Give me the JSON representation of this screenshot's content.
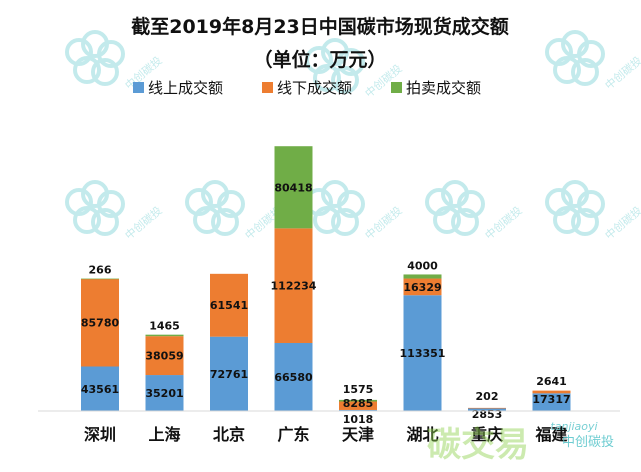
{
  "chart_data": {
    "type": "bar",
    "stacked": true,
    "title": "截至2019年8月23日中国碳市场现货成交额",
    "subtitle": "（单位：万元）",
    "categories": [
      "深圳",
      "上海",
      "北京",
      "广东",
      "天津",
      "湖北",
      "重庆",
      "福建"
    ],
    "series": [
      {
        "name": "线上成交额",
        "color": "#5b9bd5",
        "values": [
          43561,
          35201,
          72761,
          66580,
          1018,
          113351,
          2853,
          17317
        ]
      },
      {
        "name": "线下成交额",
        "color": "#ed7d31",
        "values": [
          85780,
          38059,
          61541,
          112234,
          8285,
          16329,
          202,
          2641
        ]
      },
      {
        "name": "拍卖成交额",
        "color": "#70ad47",
        "values": [
          266,
          1465,
          0,
          80418,
          1575,
          4000,
          0,
          0
        ]
      }
    ],
    "labels": [
      [
        "43561",
        "85780",
        "266"
      ],
      [
        "35201",
        "38059",
        "1465"
      ],
      [
        "72761",
        "61541",
        ""
      ],
      [
        "66580",
        "112234",
        "80418"
      ],
      [
        "1018",
        "8285",
        "1575"
      ],
      [
        "113351",
        "16329",
        "4000"
      ],
      [
        "2853",
        "202",
        ""
      ],
      [
        "17317",
        "2641",
        ""
      ]
    ],
    "ylim": [
      0,
      280000
    ],
    "legend": "top",
    "grid": false
  },
  "watermark": {
    "text": "中创碳投",
    "url_text": "tanjiaoyi",
    "brand_text": "碳交易"
  }
}
